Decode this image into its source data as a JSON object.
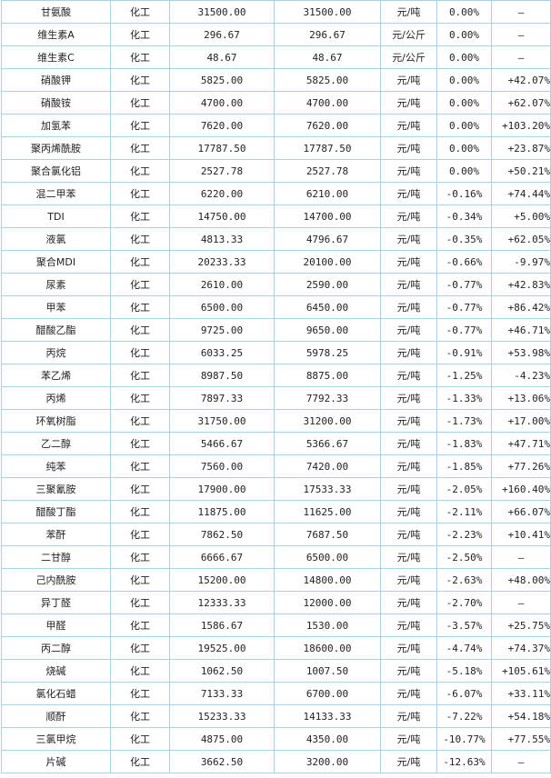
{
  "colors": {
    "border": "#a6d2ea",
    "name": "#1a4fa3",
    "up": "#d00000",
    "down": "#1f8a1f",
    "neutral": "#222222"
  },
  "rows": [
    {
      "name": "甘氨酸",
      "category": "化工",
      "price1": "31500.00",
      "price2": "31500.00",
      "unit": "元/吨",
      "change": "0.00%",
      "yoy": "—"
    },
    {
      "name": "维生素A",
      "category": "化工",
      "price1": "296.67",
      "price2": "296.67",
      "unit": "元/公斤",
      "change": "0.00%",
      "yoy": "—"
    },
    {
      "name": "维生素C",
      "category": "化工",
      "price1": "48.67",
      "price2": "48.67",
      "unit": "元/公斤",
      "change": "0.00%",
      "yoy": "—"
    },
    {
      "name": "硝酸钾",
      "category": "化工",
      "price1": "5825.00",
      "price2": "5825.00",
      "unit": "元/吨",
      "change": "0.00%",
      "yoy": "+42.07%"
    },
    {
      "name": "硝酸铵",
      "category": "化工",
      "price1": "4700.00",
      "price2": "4700.00",
      "unit": "元/吨",
      "change": "0.00%",
      "yoy": "+62.07%"
    },
    {
      "name": "加氢苯",
      "category": "化工",
      "price1": "7620.00",
      "price2": "7620.00",
      "unit": "元/吨",
      "change": "0.00%",
      "yoy": "+103.20%"
    },
    {
      "name": "聚丙烯酰胺",
      "category": "化工",
      "price1": "17787.50",
      "price2": "17787.50",
      "unit": "元/吨",
      "change": "0.00%",
      "yoy": "+23.87%"
    },
    {
      "name": "聚合氯化铝",
      "category": "化工",
      "price1": "2527.78",
      "price2": "2527.78",
      "unit": "元/吨",
      "change": "0.00%",
      "yoy": "+50.21%"
    },
    {
      "name": "混二甲苯",
      "category": "化工",
      "price1": "6220.00",
      "price2": "6210.00",
      "unit": "元/吨",
      "change": "-0.16%",
      "yoy": "+74.44%"
    },
    {
      "name": "TDI",
      "category": "化工",
      "price1": "14750.00",
      "price2": "14700.00",
      "unit": "元/吨",
      "change": "-0.34%",
      "yoy": "+5.00%"
    },
    {
      "name": "液氯",
      "category": "化工",
      "price1": "4813.33",
      "price2": "4796.67",
      "unit": "元/吨",
      "change": "-0.35%",
      "yoy": "+62.05%"
    },
    {
      "name": "聚合MDI",
      "category": "化工",
      "price1": "20233.33",
      "price2": "20100.00",
      "unit": "元/吨",
      "change": "-0.66%",
      "yoy": "-9.97%"
    },
    {
      "name": "尿素",
      "category": "化工",
      "price1": "2610.00",
      "price2": "2590.00",
      "unit": "元/吨",
      "change": "-0.77%",
      "yoy": "+42.83%"
    },
    {
      "name": "甲苯",
      "category": "化工",
      "price1": "6500.00",
      "price2": "6450.00",
      "unit": "元/吨",
      "change": "-0.77%",
      "yoy": "+86.42%"
    },
    {
      "name": "醋酸乙酯",
      "category": "化工",
      "price1": "9725.00",
      "price2": "9650.00",
      "unit": "元/吨",
      "change": "-0.77%",
      "yoy": "+46.71%"
    },
    {
      "name": "丙烷",
      "category": "化工",
      "price1": "6033.25",
      "price2": "5978.25",
      "unit": "元/吨",
      "change": "-0.91%",
      "yoy": "+53.98%"
    },
    {
      "name": "苯乙烯",
      "category": "化工",
      "price1": "8987.50",
      "price2": "8875.00",
      "unit": "元/吨",
      "change": "-1.25%",
      "yoy": "-4.23%"
    },
    {
      "name": "丙烯",
      "category": "化工",
      "price1": "7897.33",
      "price2": "7792.33",
      "unit": "元/吨",
      "change": "-1.33%",
      "yoy": "+13.06%"
    },
    {
      "name": "环氧树脂",
      "category": "化工",
      "price1": "31750.00",
      "price2": "31200.00",
      "unit": "元/吨",
      "change": "-1.73%",
      "yoy": "+17.00%"
    },
    {
      "name": "乙二醇",
      "category": "化工",
      "price1": "5466.67",
      "price2": "5366.67",
      "unit": "元/吨",
      "change": "-1.83%",
      "yoy": "+47.71%"
    },
    {
      "name": "纯苯",
      "category": "化工",
      "price1": "7560.00",
      "price2": "7420.00",
      "unit": "元/吨",
      "change": "-1.85%",
      "yoy": "+77.26%"
    },
    {
      "name": "三聚氰胺",
      "category": "化工",
      "price1": "17900.00",
      "price2": "17533.33",
      "unit": "元/吨",
      "change": "-2.05%",
      "yoy": "+160.40%"
    },
    {
      "name": "醋酸丁酯",
      "category": "化工",
      "price1": "11875.00",
      "price2": "11625.00",
      "unit": "元/吨",
      "change": "-2.11%",
      "yoy": "+66.07%"
    },
    {
      "name": "苯酐",
      "category": "化工",
      "price1": "7862.50",
      "price2": "7687.50",
      "unit": "元/吨",
      "change": "-2.23%",
      "yoy": "+10.41%"
    },
    {
      "name": "二甘醇",
      "category": "化工",
      "price1": "6666.67",
      "price2": "6500.00",
      "unit": "元/吨",
      "change": "-2.50%",
      "yoy": "—"
    },
    {
      "name": "己内酰胺",
      "category": "化工",
      "price1": "15200.00",
      "price2": "14800.00",
      "unit": "元/吨",
      "change": "-2.63%",
      "yoy": "+48.00%"
    },
    {
      "name": "异丁醛",
      "category": "化工",
      "price1": "12333.33",
      "price2": "12000.00",
      "unit": "元/吨",
      "change": "-2.70%",
      "yoy": "—"
    },
    {
      "name": "甲醛",
      "category": "化工",
      "price1": "1586.67",
      "price2": "1530.00",
      "unit": "元/吨",
      "change": "-3.57%",
      "yoy": "+25.75%"
    },
    {
      "name": "丙二醇",
      "category": "化工",
      "price1": "19525.00",
      "price2": "18600.00",
      "unit": "元/吨",
      "change": "-4.74%",
      "yoy": "+74.37%"
    },
    {
      "name": "烧碱",
      "category": "化工",
      "price1": "1062.50",
      "price2": "1007.50",
      "unit": "元/吨",
      "change": "-5.18%",
      "yoy": "+105.61%"
    },
    {
      "name": "氯化石蜡",
      "category": "化工",
      "price1": "7133.33",
      "price2": "6700.00",
      "unit": "元/吨",
      "change": "-6.07%",
      "yoy": "+33.11%"
    },
    {
      "name": "顺酐",
      "category": "化工",
      "price1": "15233.33",
      "price2": "14133.33",
      "unit": "元/吨",
      "change": "-7.22%",
      "yoy": "+54.18%"
    },
    {
      "name": "三氯甲烷",
      "category": "化工",
      "price1": "4875.00",
      "price2": "4350.00",
      "unit": "元/吨",
      "change": "-10.77%",
      "yoy": "+77.55%"
    },
    {
      "name": "片碱",
      "category": "化工",
      "price1": "3662.50",
      "price2": "3200.00",
      "unit": "元/吨",
      "change": "-12.63%",
      "yoy": "—"
    }
  ]
}
